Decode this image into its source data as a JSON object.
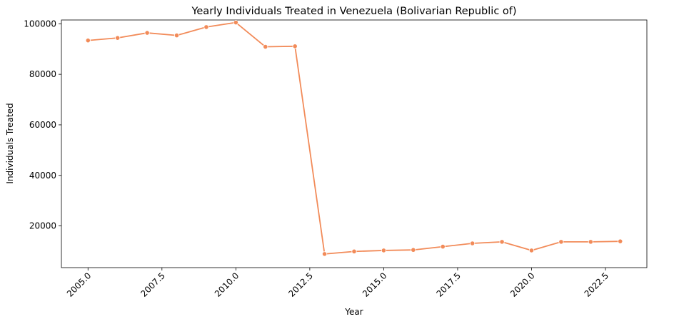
{
  "chart_data": {
    "type": "line",
    "title": "Yearly Individuals Treated in Venezuela (Bolivarian Republic of)",
    "xlabel": "Year",
    "ylabel": "Individuals Treated",
    "xlim": [
      2004.1,
      2023.9
    ],
    "ylim": [
      3500,
      101500
    ],
    "x_ticks": [
      2005.0,
      2007.5,
      2010.0,
      2012.5,
      2015.0,
      2017.5,
      2020.0,
      2022.5
    ],
    "x_tick_labels": [
      "2005.0",
      "2007.5",
      "2010.0",
      "2012.5",
      "2015.0",
      "2017.5",
      "2020.0",
      "2022.5"
    ],
    "y_ticks": [
      20000,
      40000,
      60000,
      80000,
      100000
    ],
    "y_tick_labels": [
      "20000",
      "40000",
      "60000",
      "80000",
      "100000"
    ],
    "grid": false,
    "legend": "none",
    "series": [
      {
        "x": [
          2005,
          2006,
          2007,
          2008,
          2009,
          2010,
          2011,
          2012,
          2013,
          2014,
          2015,
          2016,
          2017,
          2018,
          2019,
          2020,
          2021,
          2022,
          2023
        ],
        "values": [
          93400,
          94400,
          96400,
          95400,
          98700,
          100500,
          90900,
          91100,
          8900,
          9900,
          10300,
          10500,
          11800,
          13100,
          13700,
          10300,
          13700,
          13700,
          13900
        ],
        "color": "#f28b59",
        "marker": "circle"
      }
    ]
  }
}
